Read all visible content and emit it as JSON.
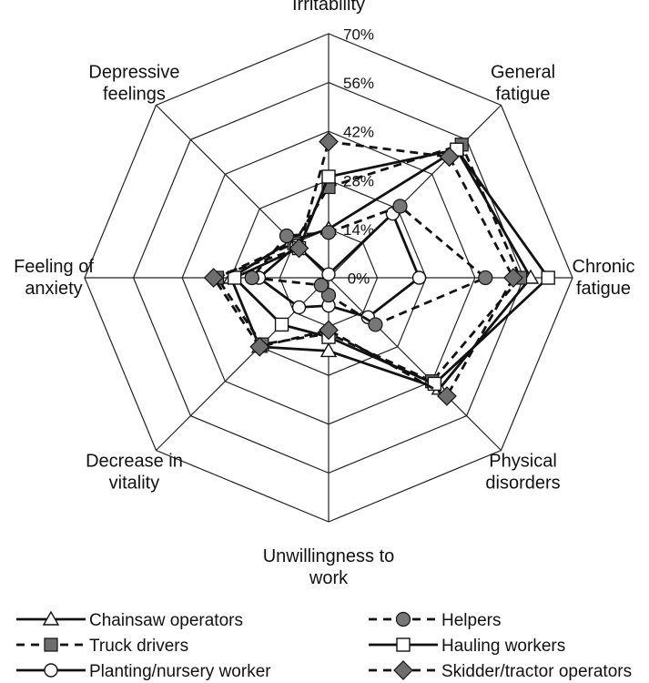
{
  "chart_data": {
    "type": "radar",
    "title": "",
    "axes": [
      {
        "label": [
          "Irritability"
        ]
      },
      {
        "label": [
          "General",
          "fatigue"
        ]
      },
      {
        "label": [
          "Chronic",
          "fatigue"
        ]
      },
      {
        "label": [
          "Physical",
          "disorders"
        ]
      },
      {
        "label": [
          "Unwillingness to",
          "work"
        ]
      },
      {
        "label": [
          "Decrease in",
          "vitality"
        ]
      },
      {
        "label": [
          "Feeling of",
          "anxiety"
        ]
      },
      {
        "label": [
          "Depressive",
          "feelings"
        ]
      }
    ],
    "ticks": [
      {
        "value": 0,
        "label": "0%"
      },
      {
        "value": 14,
        "label": "14%"
      },
      {
        "value": 28,
        "label": "28%"
      },
      {
        "value": 42,
        "label": "42%"
      },
      {
        "value": 56,
        "label": "56%"
      },
      {
        "value": 70,
        "label": "70%"
      }
    ],
    "rmax": 70,
    "grid": true,
    "legend_position": "bottom",
    "series": [
      {
        "name": "Chainsaw operators",
        "marker": "triangle",
        "dash": false,
        "values": [
          14,
          52,
          58,
          45,
          21,
          28,
          28,
          15
        ]
      },
      {
        "name": "Truck drivers",
        "marker": "square",
        "dash": true,
        "values": [
          26,
          54,
          55,
          42,
          16,
          27,
          32,
          14
        ]
      },
      {
        "name": "Planting/nursery worker",
        "marker": "circle",
        "dash": false,
        "values": [
          1,
          26,
          26,
          16,
          8,
          12,
          20,
          13
        ]
      },
      {
        "name": "Helpers",
        "marker": "circle-filled",
        "dash": true,
        "values": [
          13,
          29,
          45,
          19,
          5,
          3,
          22,
          17
        ]
      },
      {
        "name": "Hauling workers",
        "marker": "square-open",
        "dash": false,
        "values": [
          29,
          52,
          63,
          43,
          17,
          19,
          27,
          12
        ]
      },
      {
        "name": "Skidder/tractor operators",
        "marker": "diamond",
        "dash": true,
        "values": [
          39,
          49,
          53,
          48,
          15,
          28,
          33,
          12
        ]
      }
    ]
  }
}
